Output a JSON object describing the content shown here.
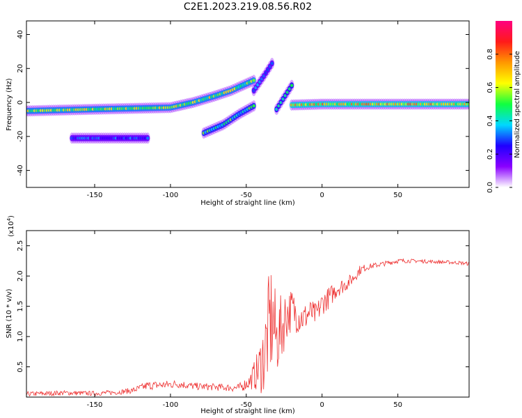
{
  "title": "C2E1.2023.219.08.56.R02",
  "colors": {
    "spectrogram_background": "#ffffff",
    "snr_line": "#ee3333",
    "colormap": [
      "#ffffff",
      "#8a00ff",
      "#1f00ff",
      "#00d8ff",
      "#10ff40",
      "#ffff00",
      "#ff9800",
      "#ff1a1a",
      "#ff0080"
    ]
  },
  "chart_data": [
    {
      "type": "heatmap",
      "xlabel": "Height of straight line (km)",
      "ylabel": "Frequency (Hz)",
      "xlim": [
        -195,
        97
      ],
      "ylim": [
        -50,
        48
      ],
      "xticks": [
        -150,
        -100,
        -50,
        0,
        50
      ],
      "xticklabels": [
        "-150",
        "-100",
        "-50",
        "0",
        "50"
      ],
      "yticks": [
        -40,
        -20,
        0,
        20,
        40
      ],
      "yticklabels": [
        "-40",
        "-20",
        "0",
        "20",
        "40"
      ],
      "colorbar": {
        "label": "Normalized spectral amplitude",
        "range": [
          0,
          1
        ],
        "ticks": [
          0.0,
          0.2,
          0.4,
          0.6,
          0.8
        ],
        "ticklabels": [
          "0.0",
          "0.2",
          "0.4",
          "0.6",
          "0.8"
        ]
      },
      "features": [
        {
          "kind": "trace",
          "x": [
            -195,
            -150,
            -100,
            -85,
            -70,
            -60,
            -50,
            -45
          ],
          "y": [
            -5,
            -4,
            -3,
            0,
            4,
            7,
            11,
            13
          ],
          "amplitude": 0.55
        },
        {
          "kind": "trace",
          "x": [
            -20,
            0,
            50,
            97
          ],
          "y": [
            -1.5,
            -1,
            -1,
            -1
          ],
          "amplitude": 0.65
        },
        {
          "kind": "trace",
          "x": [
            -165,
            -150,
            -130,
            -115
          ],
          "y": [
            -21,
            -21,
            -21,
            -21
          ],
          "amplitude": 0.28
        },
        {
          "kind": "trace",
          "x": [
            -78,
            -65,
            -55,
            -45
          ],
          "y": [
            -18,
            -13,
            -7,
            -2
          ],
          "amplitude": 0.45
        },
        {
          "kind": "trace",
          "x": [
            -45,
            -38,
            -33
          ],
          "y": [
            7,
            16,
            23
          ],
          "amplitude": 0.3
        },
        {
          "kind": "trace",
          "x": [
            -30,
            -20
          ],
          "y": [
            -4,
            10
          ],
          "amplitude": 0.4
        }
      ]
    },
    {
      "type": "line",
      "xlabel": "Height of straight line (km)",
      "ylabel": "SNR (10 * v/v)",
      "y_scale_label": "(x10",
      "y_scale_exponent": "4",
      "y_scale_suffix": ")",
      "xlim": [
        -195,
        97
      ],
      "ylim": [
        0,
        2.75
      ],
      "xticks": [
        -150,
        -100,
        -50,
        0,
        50
      ],
      "xticklabels": [
        "-150",
        "-100",
        "-50",
        "0",
        "50"
      ],
      "yticks": [
        0.5,
        1.0,
        1.5,
        2.0,
        2.5
      ],
      "yticklabels": [
        "0.5",
        "1.0",
        "1.5",
        "2.0",
        "2.5"
      ],
      "series": [
        {
          "x": [
            -195,
            -170,
            -150,
            -135,
            -125,
            -115,
            -105,
            -95,
            -85,
            -75,
            -65,
            -55,
            -48,
            -42,
            -38,
            -35,
            -33,
            -30,
            -27,
            -24,
            -20,
            -16,
            -12,
            -8,
            -4,
            0,
            5,
            10,
            15,
            20,
            25,
            30,
            40,
            50,
            60,
            70,
            80,
            90,
            97
          ],
          "y": [
            0.05,
            0.07,
            0.06,
            0.08,
            0.11,
            0.19,
            0.2,
            0.22,
            0.18,
            0.17,
            0.16,
            0.15,
            0.25,
            0.45,
            0.7,
            1.15,
            1.3,
            0.95,
            1.1,
            1.35,
            1.45,
            1.35,
            1.3,
            1.4,
            1.35,
            1.55,
            1.65,
            1.8,
            1.85,
            1.95,
            2.1,
            2.15,
            2.2,
            2.25,
            2.25,
            2.24,
            2.23,
            2.22,
            2.2
          ],
          "noise": [
            0.04,
            0.04,
            0.04,
            0.04,
            0.05,
            0.07,
            0.07,
            0.07,
            0.06,
            0.06,
            0.06,
            0.07,
            0.12,
            0.35,
            0.7,
            0.9,
            1.0,
            0.6,
            0.6,
            0.45,
            0.35,
            0.3,
            0.25,
            0.22,
            0.2,
            0.2,
            0.18,
            0.15,
            0.12,
            0.1,
            0.08,
            0.05,
            0.04,
            0.04,
            0.03,
            0.03,
            0.03,
            0.03,
            0.03
          ]
        }
      ]
    }
  ]
}
